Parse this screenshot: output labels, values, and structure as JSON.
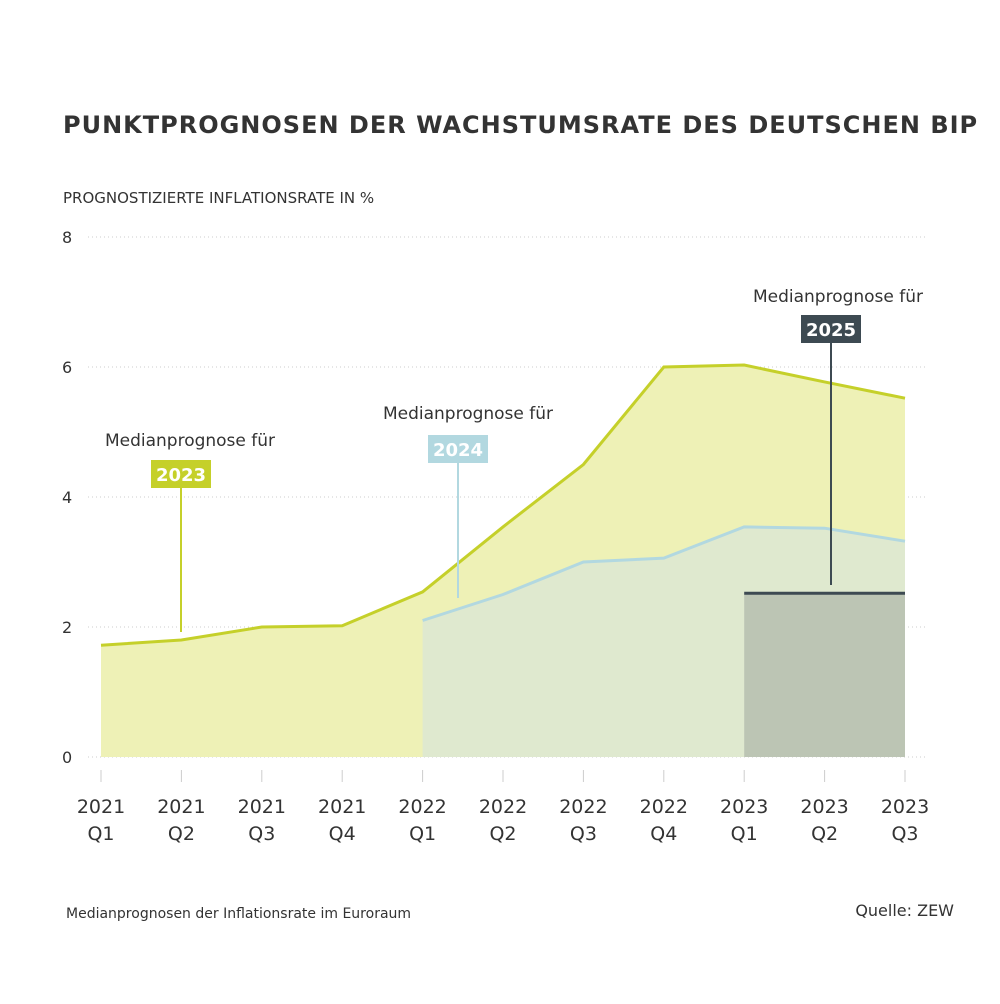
{
  "chart_data": {
    "type": "area",
    "title": "PUNKTPROGNOSEN DER WACHSTUMSRATE DES DEUTSCHEN BIP",
    "y_label": "PROGNOSTIZIERTE INFLATIONSRATE IN %",
    "note": "Medianprognosen der Inflationsrate im Euroraum",
    "source": "Quelle: ZEW",
    "categories": [
      [
        "2021",
        "Q1"
      ],
      [
        "2021",
        "Q2"
      ],
      [
        "2021",
        "Q3"
      ],
      [
        "2021",
        "Q4"
      ],
      [
        "2022",
        "Q1"
      ],
      [
        "2022",
        "Q2"
      ],
      [
        "2022",
        "Q3"
      ],
      [
        "2022",
        "Q4"
      ],
      [
        "2023",
        "Q1"
      ],
      [
        "2023",
        "Q2"
      ],
      [
        "2023",
        "Q3"
      ]
    ],
    "series": [
      {
        "name": "2023",
        "label": "Medianprognose für",
        "color": "#c5d02a",
        "fill_color": "#eef1b6",
        "values": [
          1.72,
          1.8,
          2.0,
          2.02,
          2.54,
          3.54,
          4.5,
          6.0,
          6.03,
          5.77,
          5.52
        ]
      },
      {
        "name": "2024",
        "label": "Medianprognose für",
        "color": "#b2d8e0",
        "fill_color": "#dfe9cf",
        "values": [
          null,
          null,
          null,
          null,
          2.1,
          2.5,
          3.0,
          3.06,
          3.54,
          3.52,
          3.32
        ]
      },
      {
        "name": "2025",
        "label": "Medianprognose für",
        "color": "#3d4a52",
        "fill_color": "#bcc5b4",
        "values": [
          null,
          null,
          null,
          null,
          null,
          null,
          null,
          null,
          2.52,
          2.52,
          2.52
        ]
      }
    ],
    "ylim": [
      0,
      8
    ],
    "yticks": [
      0,
      2,
      4,
      6,
      8
    ],
    "grid": true
  }
}
